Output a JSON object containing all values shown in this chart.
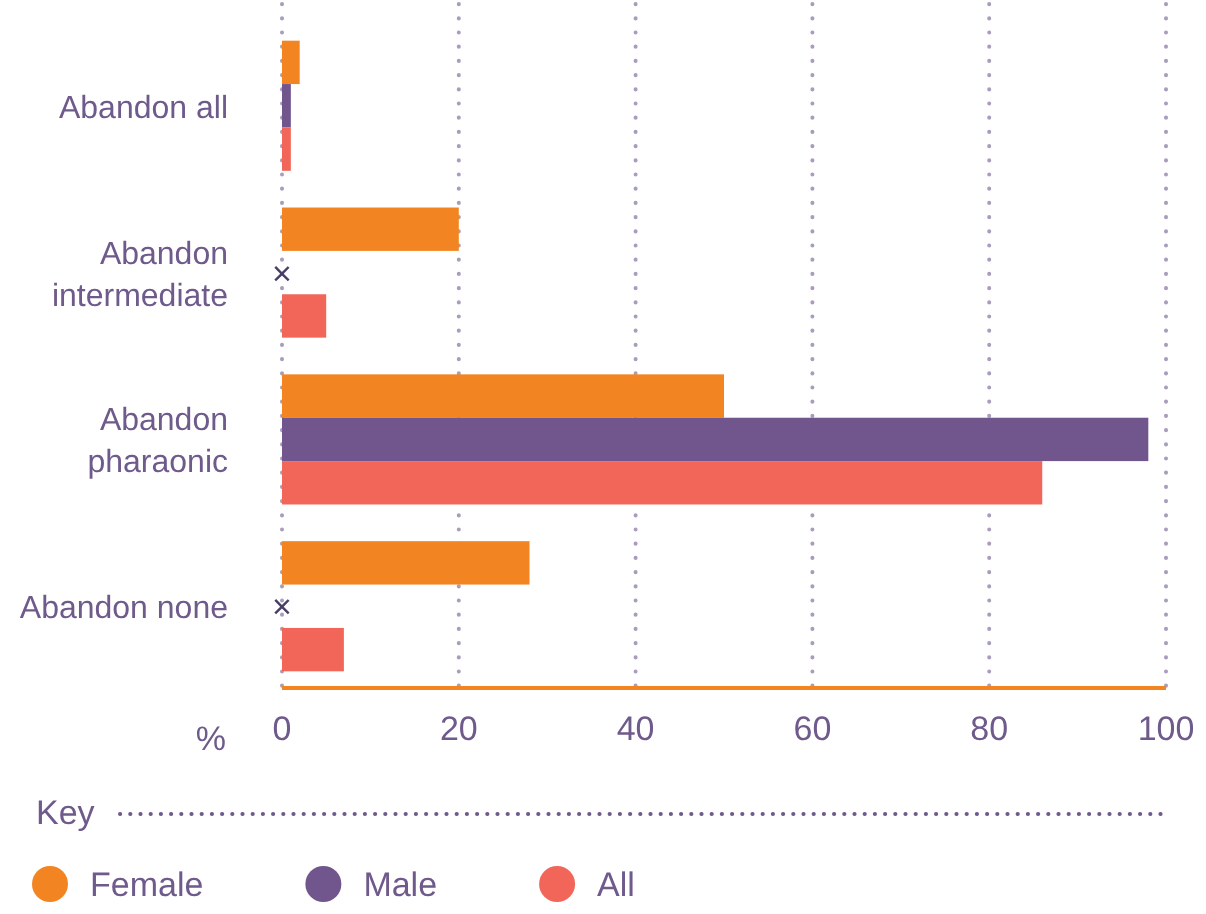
{
  "chart_data": {
    "type": "bar",
    "orientation": "horizontal",
    "xlabel": "%",
    "legend_title": "Key",
    "legend": "bottom",
    "grid": "x",
    "categories": [
      "Abandon all",
      "Abandon intermediate",
      "Abandon pharaonic",
      "Abandon none"
    ],
    "series": [
      {
        "name": "Female",
        "color": "#f28522",
        "values": [
          2,
          20,
          50,
          28
        ]
      },
      {
        "name": "Male",
        "color": "#70568c",
        "values": [
          1,
          null,
          98,
          null
        ]
      },
      {
        "name": "All",
        "color": "#f16658",
        "values": [
          1,
          5,
          86,
          7
        ]
      }
    ],
    "xlim": [
      0,
      100
    ],
    "xticks": [
      0,
      20,
      40,
      60,
      80,
      100
    ],
    "annotations": [
      "×",
      "×"
    ]
  }
}
